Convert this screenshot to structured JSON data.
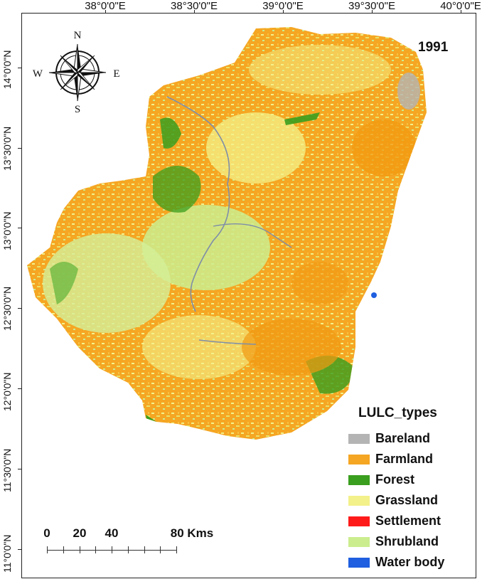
{
  "map": {
    "year": "1991",
    "lon_labels": [
      "38°0'0\"E",
      "38°30'0\"E",
      "39°0'0\"E",
      "39°30'0\"E",
      "40°0'0\"E"
    ],
    "lat_labels": [
      "14°0'0\"N",
      "13°30'0\"N",
      "13°0'0\"N",
      "12°30'0\"N",
      "12°0'0\"N",
      "11°30'0\"N",
      "11°0'0\"N"
    ],
    "compass": {
      "n": "N",
      "s": "S",
      "e": "E",
      "w": "W"
    },
    "legend": {
      "title": "LULC_types",
      "items": [
        {
          "label": "Bareland",
          "color": "#b4b4b4"
        },
        {
          "label": "Farmland",
          "color": "#f5a623"
        },
        {
          "label": "Forest",
          "color": "#3a9e1e"
        },
        {
          "label": "Grassland",
          "color": "#f3f18a"
        },
        {
          "label": "Settlement",
          "color": "#ff1a1a"
        },
        {
          "label": "Shrubland",
          "color": "#cbed8e"
        },
        {
          "label": "Water body",
          "color": "#1f5fe0"
        }
      ]
    },
    "scale": {
      "labels": [
        "0",
        "20",
        "40",
        "80 Kms"
      ]
    }
  }
}
